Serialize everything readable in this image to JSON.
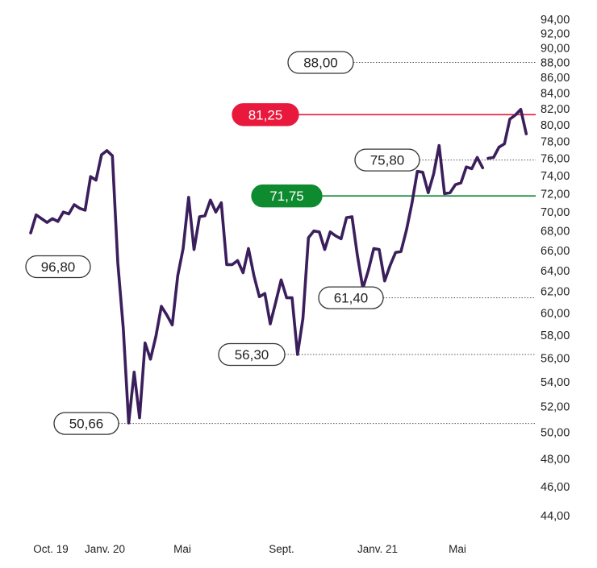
{
  "chart_data": {
    "type": "line",
    "title": "",
    "xlabel": "",
    "ylabel": "",
    "y_scale": "log",
    "ylim": [
      43.5,
      95
    ],
    "y_ticks": [
      "94,00",
      "92,00",
      "90,00",
      "88,00",
      "86,00",
      "84,00",
      "82,00",
      "80,00",
      "78,00",
      "76,00",
      "74,00",
      "72,00",
      "70,00",
      "68,00",
      "66,00",
      "64,00",
      "62,00",
      "60,00",
      "58,00",
      "56,00",
      "54,00",
      "52,00",
      "50,00",
      "48,00",
      "46,00",
      "44,00"
    ],
    "x_ticks": [
      "Oct. 19",
      "Janv. 20",
      "Mai",
      "Sept.",
      "Janv. 21",
      "Mai"
    ],
    "series": [
      {
        "color": "#3b1f5c",
        "x": [
          0,
          1,
          2,
          3,
          4,
          5,
          6,
          7,
          8,
          9,
          10,
          11,
          12,
          13,
          14,
          15,
          16,
          17,
          18,
          19,
          20,
          21,
          22,
          23,
          24,
          25,
          26,
          27,
          28,
          29,
          30,
          31,
          32,
          33,
          34,
          35,
          36,
          37,
          38,
          39,
          40,
          41,
          42,
          43,
          44,
          45,
          46,
          47,
          48,
          49,
          50,
          51,
          52,
          53,
          54,
          55,
          56,
          57,
          58,
          59,
          60,
          61,
          62,
          63,
          64,
          65,
          66,
          67,
          68,
          69,
          70,
          71,
          72,
          73,
          74,
          75,
          76,
          77,
          78,
          79,
          80,
          81,
          82,
          83
        ],
        "values": [
          67.8,
          69.7,
          69.3,
          68.9,
          69.3,
          69.0,
          70.0,
          69.8,
          70.8,
          70.4,
          70.2,
          73.9,
          73.5,
          76.4,
          76.9,
          76.3,
          64.8,
          58.6,
          50.7,
          54.8,
          51.1,
          57.3,
          55.9,
          57.9,
          60.6,
          59.8,
          58.9,
          63.5,
          66.2,
          71.6,
          66.1,
          69.5,
          69.6,
          71.3,
          70.0,
          71.0,
          64.6,
          64.6,
          65.0,
          63.8,
          66.2,
          63.5,
          61.5,
          61.8,
          59.0,
          61.0,
          63.1,
          61.4,
          61.4,
          56.3,
          59.5,
          67.3,
          68.0,
          67.9,
          66.1,
          67.9,
          67.5,
          67.2,
          69.4,
          69.5,
          65.5,
          62.3,
          64.0,
          66.2,
          66.1,
          63.0,
          64.5,
          65.8,
          65.9,
          68.1,
          70.9,
          74.5,
          74.4,
          72.1,
          74.2,
          77.5,
          72.0,
          72.1,
          73.0,
          73.2,
          75.0,
          74.8,
          76.1,
          74.9
        ]
      },
      {
        "color": "#3b1f5c",
        "x": [
          84,
          85,
          86,
          87,
          88,
          89,
          90,
          91
        ],
        "values": [
          76.0,
          76.1,
          77.3,
          77.7,
          80.7,
          81.2,
          81.9,
          78.9
        ]
      }
    ],
    "reference_lines": [
      {
        "label": "81,25",
        "value": 81.25,
        "style": "solid",
        "color": "#e8193c",
        "pill_fill": "#e8193c",
        "text_color": "#ffffff"
      },
      {
        "label": "71,75",
        "value": 71.75,
        "style": "solid",
        "color": "#0e8a2f",
        "pill_fill": "#0e8a2f",
        "text_color": "#ffffff"
      },
      {
        "label": "88,00",
        "value": 88.0,
        "style": "dotted",
        "color": "#555555",
        "pill_fill": "#ffffff",
        "text_color": "#222222"
      },
      {
        "label": "75,80",
        "value": 75.8,
        "style": "dotted",
        "color": "#555555",
        "pill_fill": "#ffffff",
        "text_color": "#222222"
      },
      {
        "label": "61,40",
        "value": 61.4,
        "style": "dotted",
        "color": "#555555",
        "pill_fill": "#ffffff",
        "text_color": "#222222"
      },
      {
        "label": "56,30",
        "value": 56.3,
        "style": "dotted",
        "color": "#555555",
        "pill_fill": "#ffffff",
        "text_color": "#222222"
      },
      {
        "label": "50,66",
        "value": 50.66,
        "style": "dotted",
        "color": "#555555",
        "pill_fill": "#ffffff",
        "text_color": "#222222"
      }
    ],
    "annotations": [
      {
        "label": "96,80"
      }
    ]
  }
}
